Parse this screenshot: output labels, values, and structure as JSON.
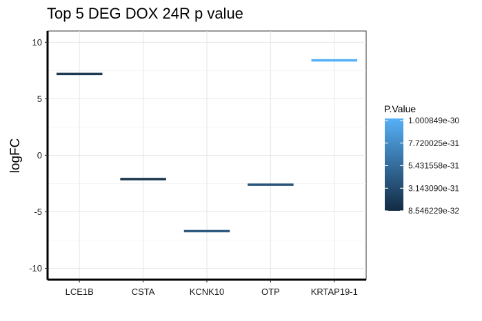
{
  "chart_data": {
    "type": "bar",
    "title": "Top 5 DEG DOX 24R p value",
    "xlabel": "",
    "ylabel": "logFC",
    "categories": [
      "LCE1B",
      "CSTA",
      "KCNK10",
      "OTP",
      "KRTAP19-1"
    ],
    "values": [
      7.2,
      -2.1,
      -6.7,
      -2.6,
      8.4
    ],
    "colors": [
      "#1c3a52",
      "#18344b",
      "#2f5a80",
      "#2c5679",
      "#56b1f7"
    ],
    "ylim": [
      -11,
      11
    ],
    "yticks": [
      -10,
      -5,
      0,
      5,
      10
    ],
    "ytick_labels": [
      "-10",
      "-5",
      "0",
      "5",
      "10"
    ],
    "grid": true,
    "legend": {
      "title": "P.Value",
      "placement": "right",
      "gradient": [
        "#132b43",
        "#56b1f7"
      ],
      "labels": [
        "1.000849e-30",
        "7.720025e-31",
        "5.431558e-31",
        "3.143090e-31",
        "8.546229e-32"
      ]
    }
  }
}
